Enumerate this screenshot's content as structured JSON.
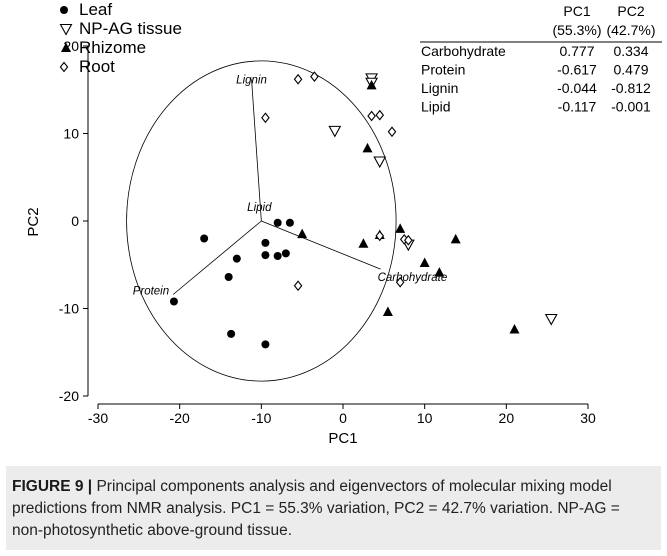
{
  "chart_data": {
    "type": "scatter",
    "xlabel": "PC1",
    "ylabel": "PC2",
    "xlim": [
      -30,
      30
    ],
    "ylim": [
      -20,
      20
    ],
    "x_ticks": [
      "-30",
      "-20",
      "-10",
      "0",
      "10",
      "20",
      "30"
    ],
    "y_ticks": [
      "-20",
      "-10",
      "0",
      "10",
      "20"
    ],
    "grid": false,
    "legend_placement": "top-left",
    "series": [
      {
        "name": "Leaf",
        "marker": "filled-circle",
        "points": [
          [
            -17,
            -2
          ],
          [
            -20.7,
            -9.2
          ],
          [
            -14,
            -6.4
          ],
          [
            -13,
            -4.3
          ],
          [
            -13.7,
            -12.9
          ],
          [
            -9.5,
            -14.1
          ],
          [
            -9.5,
            -2.5
          ],
          [
            -9.5,
            -3.9
          ],
          [
            -8,
            -0.2
          ],
          [
            -6.5,
            -0.2
          ],
          [
            -7,
            -3.7
          ],
          [
            -8,
            -4
          ]
        ]
      },
      {
        "name": "NP-AG tissue",
        "marker": "open-triangle-down",
        "points": [
          [
            -1,
            10.3
          ],
          [
            3.5,
            16.3
          ],
          [
            3.5,
            15.8
          ],
          [
            4.5,
            6.8
          ],
          [
            8,
            -2.7
          ],
          [
            25.5,
            -11.2
          ]
        ]
      },
      {
        "name": "Rhizome",
        "marker": "filled-triangle-up",
        "points": [
          [
            3.5,
            15.5
          ],
          [
            3,
            8.3
          ],
          [
            -5,
            -1.5
          ],
          [
            2.5,
            -2.6
          ],
          [
            4.5,
            -1.6
          ],
          [
            7,
            -0.9
          ],
          [
            10,
            -4.8
          ],
          [
            11.8,
            -5.9
          ],
          [
            13.8,
            -2.1
          ],
          [
            5.5,
            -10.4
          ],
          [
            21,
            -12.4
          ]
        ]
      },
      {
        "name": "Root",
        "marker": "open-diamond",
        "points": [
          [
            -5.5,
            16.2
          ],
          [
            -3.5,
            16.5
          ],
          [
            -9.5,
            11.8
          ],
          [
            3.5,
            12
          ],
          [
            4.5,
            12.1
          ],
          [
            6,
            10.2
          ],
          [
            7.5,
            -2.1
          ],
          [
            8,
            -2.2
          ],
          [
            -5.5,
            -7.4
          ],
          [
            7,
            -7
          ],
          [
            4.5,
            -1.7
          ]
        ]
      }
    ],
    "loading_labels": [
      "Lignin",
      "Lipid",
      "Protein",
      "Carbohydrate"
    ],
    "loadings_table": {
      "columns": [
        "PC1",
        "PC2"
      ],
      "column_subtitles": [
        "(55.3%)",
        "(42.7%)"
      ],
      "rows": [
        {
          "label": "Carbohydrate",
          "pc1": "0.777",
          "pc2": "0.334"
        },
        {
          "label": "Protein",
          "pc1": "-0.617",
          "pc2": "0.479"
        },
        {
          "label": "Lignin",
          "pc1": "-0.044",
          "pc2": "-0.812"
        },
        {
          "label": "Lipid",
          "pc1": "-0.117",
          "pc2": "-0.001"
        }
      ]
    },
    "circle": {
      "center": [
        -10,
        0
      ],
      "radius_x": 16.5,
      "radius_y": 18.3
    },
    "vectors": [
      {
        "label": "Lignin",
        "end": [
          -11.2,
          16.2
        ]
      },
      {
        "label": "Lipid",
        "end": [
          -10,
          0
        ]
      },
      {
        "label": "Protein",
        "end": [
          -20.8,
          -8.4
        ]
      },
      {
        "label": "Carbohydrate",
        "end": [
          4.6,
          -5.5
        ]
      }
    ]
  },
  "caption": {
    "label": "FIGURE 9 |",
    "text": " Principal components analysis and eigenvectors of molecular mixing model predictions from NMR analysis. PC1 = 55.3% variation, PC2 = 42.7% variation. NP-AG = non-photosynthetic above-ground tissue."
  }
}
